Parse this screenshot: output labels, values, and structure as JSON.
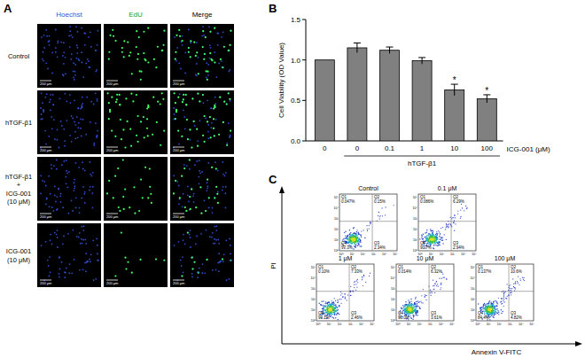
{
  "figure": {
    "panel_labels": [
      "A",
      "B",
      "C"
    ]
  },
  "panel_a": {
    "columns": [
      "Hoechst",
      "EdU",
      "Merge"
    ],
    "rows": [
      [
        "Control"
      ],
      [
        "hTGF-β1"
      ],
      [
        "hTGF-β1",
        "+",
        "ICG-001",
        "(10 μM)"
      ],
      [
        "ICG-001",
        "(10 μM)"
      ]
    ],
    "scale_bar": "200 μm"
  },
  "chart_data": {
    "type": "bar",
    "y_label": "Cell Viability (OD Value)",
    "x_label": "ICG-001 (μM)",
    "group_label": "hTGF-β1",
    "categories": [
      "0",
      "0",
      "0.1",
      "1",
      "10",
      "100"
    ],
    "values": [
      1.0,
      1.15,
      1.12,
      0.99,
      0.63,
      0.52
    ],
    "error": [
      0,
      0.06,
      0.04,
      0.04,
      0.07,
      0.05
    ],
    "significance": [
      null,
      null,
      null,
      null,
      "*",
      "*"
    ],
    "color": "#808080",
    "ylim": [
      0,
      1.5
    ],
    "yticks": [
      {
        "value": 0,
        "label": "0.0"
      },
      {
        "value": 0.5,
        "label": "0.5"
      },
      {
        "value": 1,
        "label": "1.0"
      },
      {
        "value": 1.5,
        "label": "1.5"
      }
    ]
  },
  "panel_c": {
    "x_label": "Annexin V-FITC",
    "y_label": "PI",
    "axis_ticks": [
      "10⁰",
      "10¹",
      "10²",
      "10³",
      "10⁴",
      "10⁵"
    ],
    "plots": [
      {
        "title": "Control",
        "quadrants": [
          {
            "name": "Q1",
            "label": "0.047%"
          },
          {
            "name": "Q2",
            "label": "0.15%"
          },
          {
            "name": "Q3",
            "label": "2.34%"
          },
          {
            "name": "Q4",
            "label": "97.3%"
          }
        ]
      },
      {
        "title": "0.1 μM",
        "quadrants": [
          {
            "name": "Q1",
            "label": "0.086%"
          },
          {
            "name": "Q2",
            "label": "6.29%"
          },
          {
            "name": "Q3",
            "label": "2.94%"
          },
          {
            "name": "Q4",
            "label": "90.7%"
          }
        ]
      },
      {
        "title": "1 μM",
        "quadrants": [
          {
            "name": "Q1",
            "label": "0.10%"
          },
          {
            "name": "Q2",
            "label": "7.33%"
          },
          {
            "name": "Q3",
            "label": "2.46%"
          },
          {
            "name": "Q4",
            "label": "90.1%"
          }
        ]
      },
      {
        "title": "10 μM",
        "quadrants": [
          {
            "name": "Q1",
            "label": "0.014%"
          },
          {
            "name": "Q2",
            "label": "6.32%"
          },
          {
            "name": "Q3",
            "label": "3.61%"
          },
          {
            "name": "Q4",
            "label": "90.0%"
          }
        ]
      },
      {
        "title": "100 μM",
        "quadrants": [
          {
            "name": "Q1",
            "label": "0.137%"
          },
          {
            "name": "Q2",
            "label": "10.6%"
          },
          {
            "name": "Q3",
            "label": "4.82%"
          },
          {
            "name": "Q4",
            "label": "84.4%"
          }
        ]
      }
    ]
  }
}
